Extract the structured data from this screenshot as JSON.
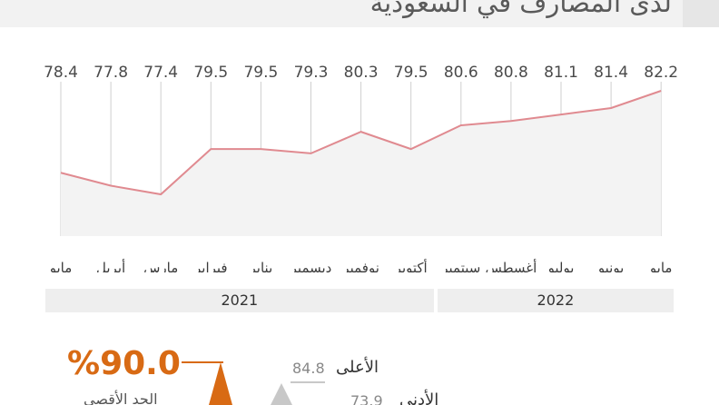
{
  "header": {
    "title": "لدى المصارف في السعودية"
  },
  "chart_data": {
    "type": "area",
    "categories": [
      "مايو",
      "يونيو",
      "يوليو",
      "أغسطس",
      "سبتمبر",
      "أكتوبر",
      "نوفمبر",
      "ديسمبر",
      "يناير",
      "فبراير",
      "مارس",
      "أبريل",
      "مايو"
    ],
    "values": [
      78.4,
      77.8,
      77.4,
      79.5,
      79.5,
      79.3,
      80.3,
      79.5,
      80.6,
      80.8,
      81.1,
      81.4,
      82.2
    ],
    "years": [
      {
        "label": "2021",
        "span": 8
      },
      {
        "label": "2022",
        "span": 5
      }
    ],
    "colors": {
      "line": "#e08a90",
      "fill": "#f3f3f3",
      "grid": "#cfcfcf"
    }
  },
  "stats": {
    "max_pct": "%90.0",
    "max_label": "الحد الأقصى",
    "high_label": "الأعلى",
    "high_value": "84.8",
    "low_label": "الأدنى",
    "low_value": "73.9",
    "accent": "#d86a14",
    "neutral": "#c8c8c8"
  }
}
